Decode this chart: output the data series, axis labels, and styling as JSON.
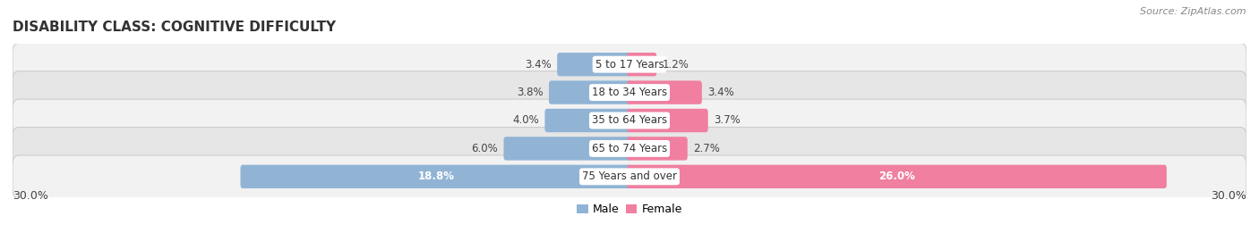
{
  "title": "DISABILITY CLASS: COGNITIVE DIFFICULTY",
  "source": "Source: ZipAtlas.com",
  "categories": [
    "5 to 17 Years",
    "18 to 34 Years",
    "35 to 64 Years",
    "65 to 74 Years",
    "75 Years and over"
  ],
  "male_values": [
    3.4,
    3.8,
    4.0,
    6.0,
    18.8
  ],
  "female_values": [
    1.2,
    3.4,
    3.7,
    2.7,
    26.0
  ],
  "male_color": "#91b4d5",
  "female_color": "#f07fa0",
  "row_bg_light": "#f2f2f2",
  "row_bg_dark": "#e6e6e6",
  "row_border_color": "#cccccc",
  "x_min": -30.0,
  "x_max": 30.0,
  "x_left_label": "30.0%",
  "x_right_label": "30.0%",
  "title_fontsize": 11,
  "source_fontsize": 8,
  "label_fontsize": 8.5,
  "category_fontsize": 8.5,
  "legend_fontsize": 9,
  "axis_fontsize": 9
}
